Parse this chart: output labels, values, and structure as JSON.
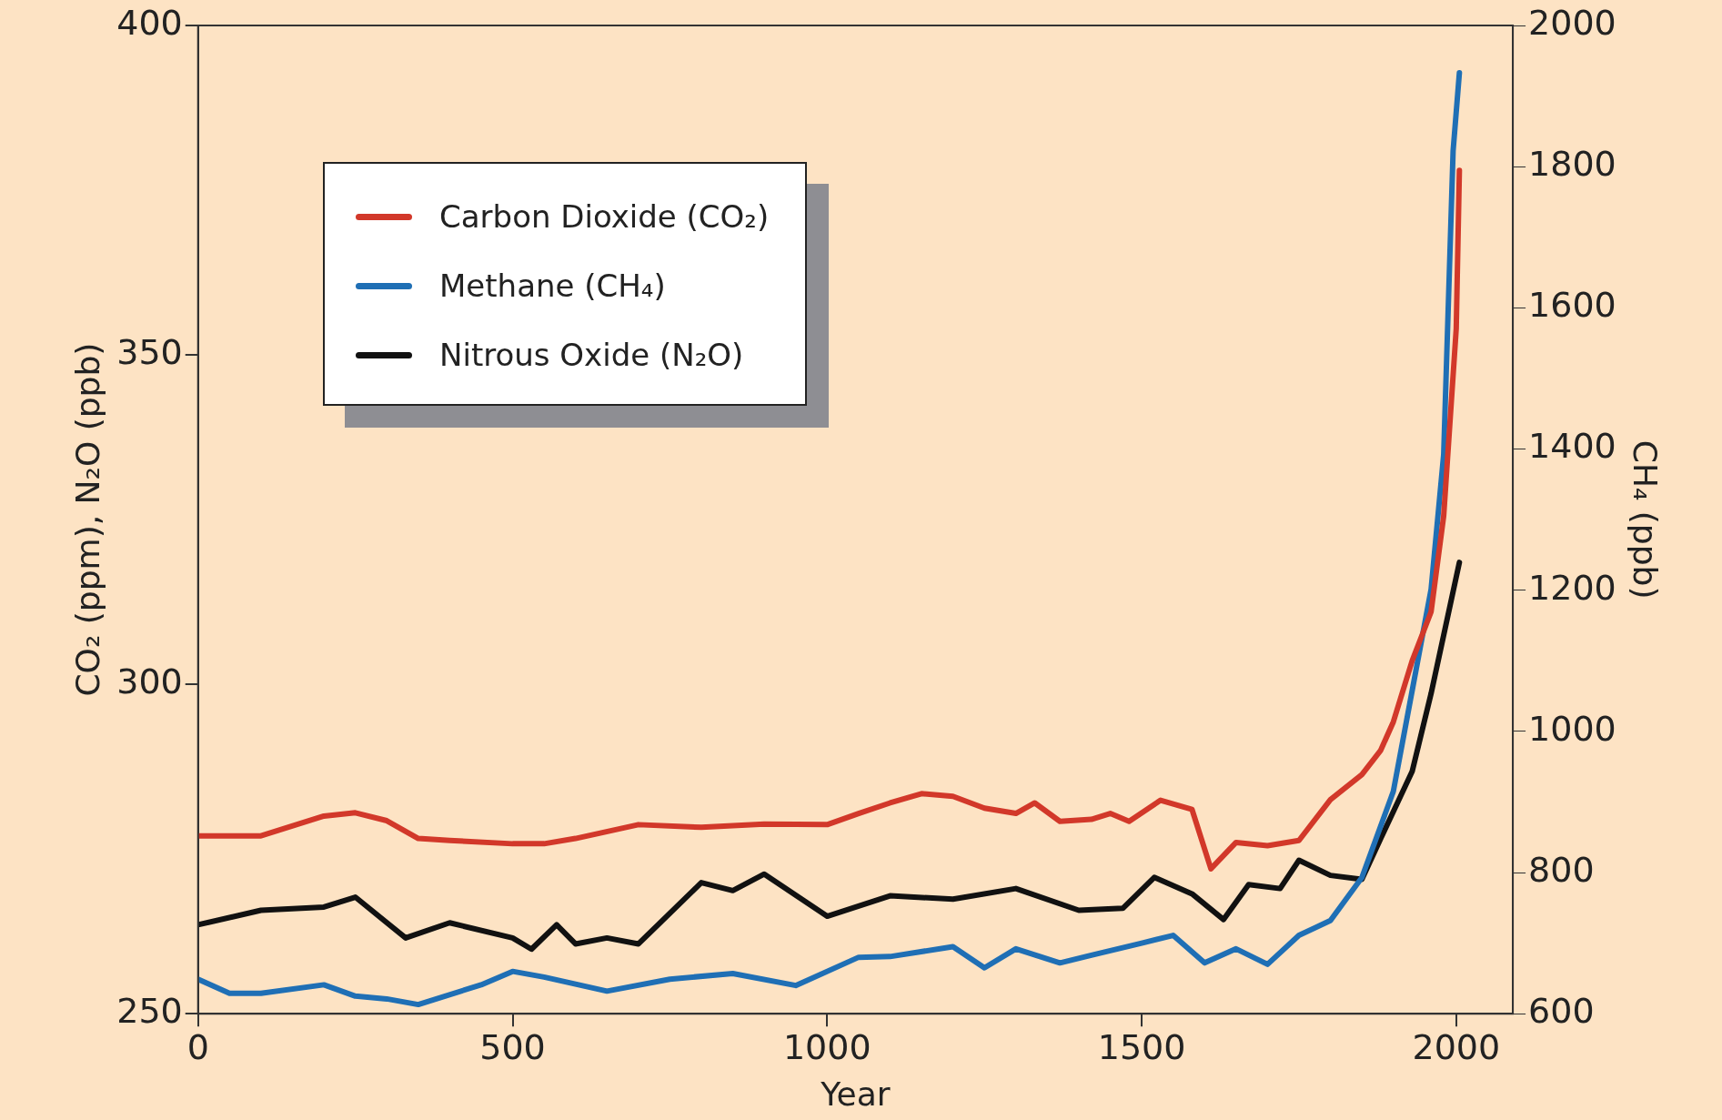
{
  "chart_data": {
    "type": "line",
    "xlabel": "Year",
    "ylabel": "CO₂ (ppm), N₂O (ppb)",
    "y2label": "CH₄ (ppb)",
    "xlim": [
      0,
      2090
    ],
    "xticks": [
      0,
      500,
      1000,
      1500,
      2000
    ],
    "ylim": [
      250,
      400
    ],
    "yticks": [
      250,
      300,
      350,
      400
    ],
    "y2lim": [
      600,
      2000
    ],
    "y2ticks": [
      600,
      800,
      1000,
      1200,
      1400,
      1600,
      1800,
      2000
    ],
    "grid": false,
    "legend": "top left",
    "marker": "none",
    "line_style": "solid",
    "series": [
      {
        "name": "Carbon Dioxide (CO₂)",
        "color": "#d2382a",
        "axis": "y",
        "x": [
          0,
          100,
          200,
          250,
          300,
          350,
          400,
          500,
          550,
          600,
          700,
          800,
          900,
          1000,
          1050,
          1100,
          1150,
          1200,
          1250,
          1300,
          1330,
          1370,
          1420,
          1450,
          1480,
          1530,
          1580,
          1610,
          1650,
          1700,
          1750,
          1800,
          1850,
          1880,
          1900,
          1930,
          1960,
          1980,
          2000,
          2005
        ],
        "values": [
          277,
          277,
          280,
          280.5,
          279.3,
          276.6,
          276.3,
          275.8,
          275.8,
          276.6,
          278.7,
          278.3,
          278.8,
          278.7,
          280.4,
          282,
          283.4,
          283,
          281.2,
          280.4,
          282,
          279.2,
          279.5,
          280.4,
          279.2,
          282.4,
          281,
          272,
          276,
          275.5,
          276.3,
          282.5,
          286.3,
          290,
          294.3,
          303.6,
          311,
          325.5,
          354,
          378
        ]
      },
      {
        "name": "Methane (CH₄)",
        "color": "#1f6fb5",
        "axis": "y2",
        "x": [
          0,
          50,
          100,
          200,
          250,
          300,
          350,
          450,
          500,
          550,
          650,
          750,
          850,
          950,
          1050,
          1100,
          1200,
          1250,
          1300,
          1370,
          1420,
          1500,
          1550,
          1600,
          1650,
          1700,
          1750,
          1800,
          1850,
          1900,
          1930,
          1960,
          1980,
          1995,
          2005
        ],
        "values": [
          649,
          629,
          629,
          641,
          625,
          621,
          613,
          641,
          660,
          652,
          632,
          649,
          657,
          640,
          680,
          681,
          695,
          665,
          692,
          672,
          683,
          700,
          711,
          672,
          692,
          670,
          711,
          732,
          793,
          915,
          1058,
          1201,
          1392,
          1822,
          1933
        ]
      },
      {
        "name": "Nitrous Oxide (N₂O)",
        "color": "#111111",
        "axis": "y",
        "x": [
          0,
          100,
          200,
          250,
          330,
          400,
          500,
          530,
          570,
          600,
          650,
          700,
          800,
          850,
          900,
          1000,
          1100,
          1200,
          1300,
          1400,
          1470,
          1520,
          1580,
          1630,
          1670,
          1720,
          1750,
          1800,
          1850,
          1880,
          1930,
          1960,
          2005
        ],
        "values": [
          263.5,
          265.7,
          266.2,
          267.7,
          261.5,
          263.8,
          261.5,
          259.8,
          263.5,
          260.6,
          261.5,
          260.6,
          269.9,
          268.7,
          271.2,
          264.8,
          267.9,
          267.4,
          269,
          265.7,
          266,
          270.7,
          268.2,
          264.3,
          269.6,
          269,
          273.3,
          271,
          270.4,
          276.6,
          286.8,
          298.6,
          318.5
        ]
      }
    ]
  }
}
